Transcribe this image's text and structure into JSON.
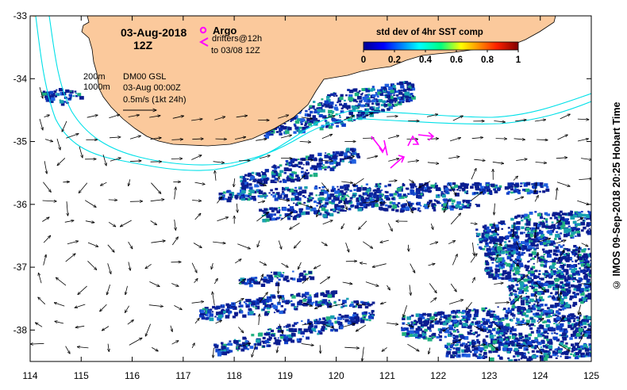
{
  "map": {
    "date_title": "03-Aug-2018",
    "time_title": "12Z",
    "argo_label": "Argo",
    "drifters_label": "drifters@12h",
    "drifters_to_label": "to 03/08 12Z",
    "depth_200_label": "200m",
    "depth_1000_label": "1000m",
    "current_product_label": "DM00 GSL",
    "current_time_label": "03-Aug 00:00Z",
    "scale_label": "0.5m/s (1kt 24h)",
    "credit": "© IMOS 09-Sep-2018 20:25 Hobart Time",
    "colors": {
      "land": "#fbc99c",
      "isobath": "#00e0e8",
      "drifter": "#ff00ff",
      "sst_base": "#0a1c90"
    },
    "axes": {
      "lon_min": 114,
      "lon_max": 125,
      "lat_min": -38.5,
      "lat_max": -33,
      "x_ticks": [
        114,
        115,
        116,
        117,
        118,
        119,
        120,
        121,
        122,
        123,
        124,
        125
      ],
      "y_ticks": [
        -33,
        -34,
        -35,
        -36,
        -37,
        -38
      ]
    }
  },
  "colorbar": {
    "title": "std dev of 4hr SST comp",
    "min": 0,
    "max": 1,
    "tick_labels": [
      "0",
      "0.2",
      "0.4",
      "0.6",
      "0.8",
      "1"
    ]
  }
}
